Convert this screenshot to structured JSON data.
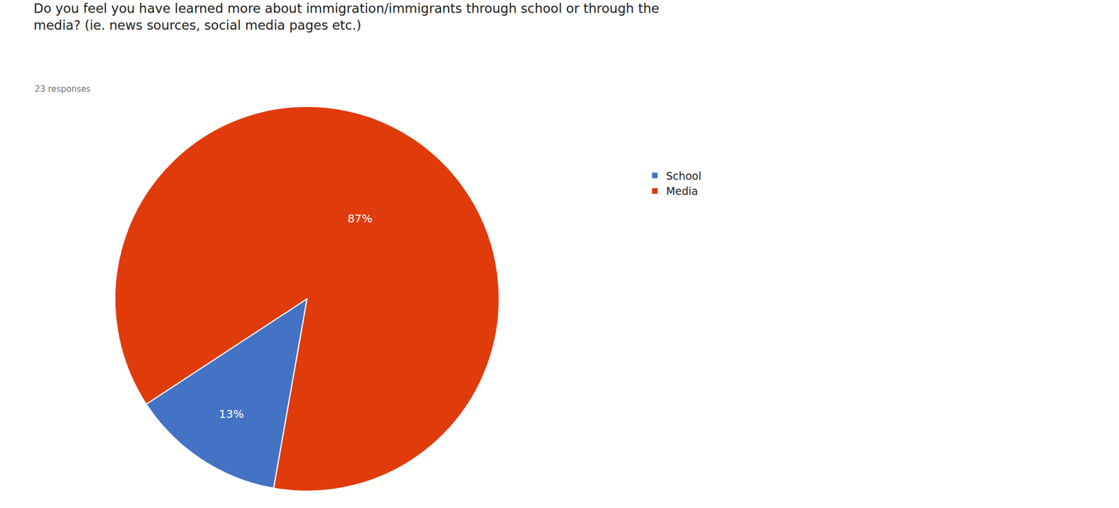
{
  "chart_data": {
    "type": "pie",
    "title": "Do you feel you have learned more about immigration/immigrants through school or through the\nmedia? (ie. news sources, social media pages etc.)",
    "subtitle": "23 responses",
    "categories": [
      "School",
      "Media"
    ],
    "values": [
      13,
      87
    ],
    "value_labels": [
      "13%",
      "87%"
    ],
    "colors": [
      "#4472C4",
      "#E03B0B"
    ],
    "data_labels": true,
    "legend": "right"
  }
}
